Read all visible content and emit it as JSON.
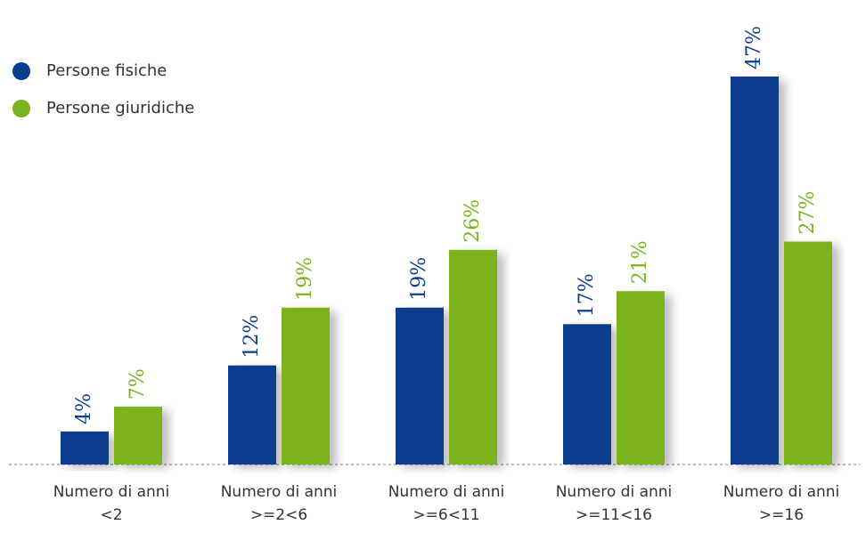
{
  "chart_data": {
    "type": "bar",
    "categories": [
      "Numero di anni\n<2",
      "Numero di anni\n>=2<6",
      "Numero di anni\n>=6<11",
      "Numero di anni\n>=11<16",
      "Numero di anni\n>=16"
    ],
    "series": [
      {
        "name": "Persone fisiche",
        "color": "#0b3e8e",
        "values": [
          4,
          12,
          19,
          17,
          47
        ],
        "value_labels": [
          "4%",
          "12%",
          "19%",
          "17%",
          "47%"
        ]
      },
      {
        "name": "Persone giuridiche",
        "color": "#7bb31e",
        "values": [
          7,
          19,
          26,
          21,
          27
        ],
        "value_labels": [
          "7%",
          "19%",
          "26%",
          "21%",
          "27%"
        ]
      }
    ],
    "legend": "top-left"
  }
}
